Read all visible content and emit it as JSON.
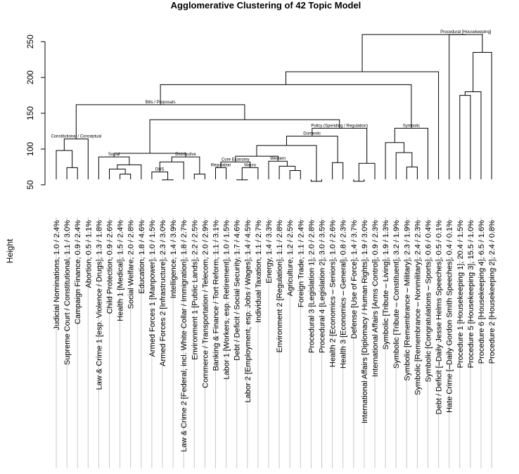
{
  "chart_data": {
    "type": "dendrogram",
    "title": "Agglomerative Clustering of 42 Topic Model",
    "ylabel": "Height",
    "ylim": [
      40,
      265
    ],
    "yticks": [
      50,
      100,
      150,
      200,
      250
    ],
    "leaves": [
      "Judicial Nominations, 1.0 / 2.4%",
      "Supreme Court / Constitutional, 1.1 / 3.0%",
      "Campaign Finance, 0.9 / 2.4%",
      "Abortion, 0.5 / 1.1%",
      "Law & Crime 1 [esp. Violence / Drugs], 1.3 / 1.8%",
      "Child Protection, 0.9 / 2.6%",
      "Health 1 [Medical], 1.5 / 2.4%",
      "Social Welfare, 2.0 / 2.8%",
      "Education, 1.8 / 4.6%",
      "Armed Forces 1 [Manpower], 1.0 / 1.5%",
      "Armed Forces 2 [Infrastructure], 2.3 / 3.0%",
      "Intelligence, 1.4 / 3.9%",
      "Law & Crime 2 [Federal, incl. White Collar / Immigration], 1.8 / 2.7%",
      "Environment 1 [Public Lands], 2.2 / 2.5%",
      "Commerce / Transportation / Telecom, 2.0 / 2.9%",
      "Banking & Finance / Tort Reform, 1.1 / 3.1%",
      "Labor 1 [Workers, esp. Retirement], 1.0 / 1.5%",
      "Debt / Deficit / Social Security, 1.7 / 4.6%",
      "Labor 2 [Employment, esp. Jobs / Wages], 1.4 / 4.5%",
      "Individual Taxation, 1.1 / 2.7%",
      "Energy, 1.4 / 3.3%",
      "Environment 2 [Regulation], 1.1 / 2.8%",
      "Agriculture, 1.2 / 2.5%",
      "Foreign Trade, 1.1 / 2.4%",
      "Procedural 3 [Legislation 1], 2.0 / 2.8%",
      "Procedural 4 [Legislation 2], 3.0 / 3.5%",
      "Health 2 [Economics – Seniors], 1.0 / 2.6%",
      "Health 3 [Economics – General], 0.8 / 2.3%",
      "Defense [Use of Force], 1.4 / 3.7%",
      "International Affairs [Diplomacy / Human Rights], 1.9 / 3.0%",
      "International Affairs [Arms Control], 0.9 / 2.3%",
      "Symbolic [Tribute – Living], 1.9 / 1.3%",
      "Symbolic [Tribute – Constituent], 3.2 / 1.9%",
      "Symbolic [Remembrance – Military], 2.3 / 1.9%",
      "Symbolic [Remembrance – Nonmilitary], 2.4 / 2.3%",
      "Symbolic [Congratulations – Sports], 0.6 / 0.4%",
      "Debt / Deficit [–Daily Jesse Helms Speeches], 0.5 / 0.1%",
      "Hate Crime [–Daily Gordon Smith Speeches], 0.4 / 0.1%",
      "Procedure 1 [Housekeeping 1], 20.4 / 1.5%",
      "Procedure 5 [Housekeeping 3], 15.5 / 1.0%",
      "Procedure 6 [Housekeeping 4], 6.5 / 1.6%",
      "Procedure 2 [Housekeeping 2], 2.4 / 0.8%"
    ],
    "merges": [
      {
        "left": "L1",
        "right": "L2",
        "height": 74
      },
      {
        "left": "N1",
        "right": "L0",
        "height": 98
      },
      {
        "left": "L3",
        "right": "N2",
        "height": 114,
        "label": "Constitutional / Conceptual"
      },
      {
        "left": "L6",
        "right": "L7",
        "height": 65
      },
      {
        "left": "L5",
        "right": "N4",
        "height": 72
      },
      {
        "left": "N5",
        "right": "L8",
        "height": 78
      },
      {
        "left": "L4",
        "right": "N6",
        "height": 89,
        "label": "Social"
      },
      {
        "left": "L10",
        "right": "L11",
        "height": 57
      },
      {
        "left": "N8",
        "right": "L9",
        "height": 68,
        "label": "DHS"
      },
      {
        "left": "N9",
        "right": "L12",
        "height": 82
      },
      {
        "left": "L13",
        "right": "L14",
        "height": 65
      },
      {
        "left": "N10",
        "right": "N11",
        "height": 89,
        "label": "Distributive"
      },
      {
        "left": "N7",
        "right": "N12",
        "height": 94
      },
      {
        "left": "L15",
        "right": "L16",
        "height": 74,
        "label": "Regulation"
      },
      {
        "left": "L17",
        "right": "L18",
        "height": 57
      },
      {
        "left": "N15",
        "right": "L19",
        "height": 74,
        "label": "Macro"
      },
      {
        "left": "N14",
        "right": "N16",
        "height": 82,
        "label": "Core Economy"
      },
      {
        "left": "L22",
        "right": "L23",
        "height": 70
      },
      {
        "left": "L21",
        "right": "N18",
        "height": 76
      },
      {
        "left": "L20",
        "right": "N19",
        "height": 83,
        "label": "Western"
      },
      {
        "left": "N17",
        "right": "N20",
        "height": 90
      },
      {
        "left": "L24",
        "right": "L25",
        "height": 55
      },
      {
        "left": "N21",
        "right": "N22",
        "height": 105
      },
      {
        "left": "L26",
        "right": "L27",
        "height": 81
      },
      {
        "left": "N23",
        "right": "N24",
        "height": 118,
        "label": "Domestic"
      },
      {
        "left": "L28",
        "right": "L29",
        "height": 55
      },
      {
        "left": "N26",
        "right": "L30",
        "height": 80
      },
      {
        "left": "N25",
        "right": "N27",
        "height": 129,
        "label": "Policy (Spending / Regulation)"
      },
      {
        "left": "N13",
        "right": "N28",
        "height": 141
      },
      {
        "left": "N3",
        "right": "N29",
        "height": 162,
        "label": "Bills / Proposals"
      },
      {
        "left": "L33",
        "right": "L34",
        "height": 75
      },
      {
        "left": "L32",
        "right": "N31",
        "height": 95
      },
      {
        "left": "L31",
        "right": "N32",
        "height": 109
      },
      {
        "left": "N33",
        "right": "L35",
        "height": 129,
        "label": "Symbolic"
      },
      {
        "left": "N30",
        "right": "N34",
        "height": 190
      },
      {
        "left": "N35",
        "right": "L36",
        "height": 208
      },
      {
        "left": "L38",
        "right": "L39",
        "height": 175
      },
      {
        "left": "N37",
        "right": "L40",
        "height": 180
      },
      {
        "left": "N38",
        "right": "L41",
        "height": 235
      },
      {
        "left": "L37",
        "right": "N39",
        "height": 260,
        "label": "Procedural [Housekeeping]"
      },
      {
        "left": "N36",
        "right": "N40",
        "height": 260
      }
    ]
  }
}
